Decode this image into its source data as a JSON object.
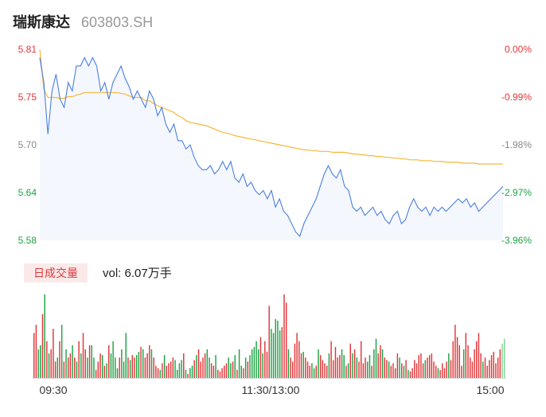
{
  "header": {
    "name": "瑞斯康达",
    "code": "603803.SH"
  },
  "volume_panel": {
    "tag": "日成交量",
    "label": "vol: 6.07万手"
  },
  "colors": {
    "price_line": "#4a7fe0",
    "avg_line": "#f5b73b",
    "area_fill": "#f4f7fd",
    "up": "#e0373a",
    "down": "#1ea345",
    "flat": "#888888",
    "axis_text": "#333333"
  },
  "chart_data": [
    {
      "type": "line",
      "title": "",
      "x_labels": [
        "09:30",
        "11:30/13:00",
        "15:00"
      ],
      "y_left_ticks": [
        "5.81",
        "5.75",
        "5.70",
        "5.64",
        "5.58"
      ],
      "y_right_ticks": [
        "0.00%",
        "-0.99%",
        "-1.98%",
        "-2.97%",
        "-3.96%"
      ],
      "ylim": [
        5.58,
        5.81
      ],
      "grid": false,
      "series": [
        {
          "role": "price",
          "values": [
            5.8,
            5.77,
            5.708,
            5.76,
            5.78,
            5.75,
            5.74,
            5.77,
            5.76,
            5.79,
            5.79,
            5.8,
            5.79,
            5.8,
            5.79,
            5.76,
            5.77,
            5.75,
            5.77,
            5.78,
            5.79,
            5.775,
            5.765,
            5.75,
            5.76,
            5.75,
            5.74,
            5.76,
            5.75,
            5.73,
            5.74,
            5.72,
            5.71,
            5.72,
            5.7,
            5.7,
            5.69,
            5.695,
            5.68,
            5.67,
            5.665,
            5.665,
            5.67,
            5.66,
            5.665,
            5.675,
            5.665,
            5.675,
            5.655,
            5.65,
            5.66,
            5.645,
            5.65,
            5.64,
            5.635,
            5.64,
            5.63,
            5.64,
            5.62,
            5.63,
            5.615,
            5.61,
            5.6,
            5.59,
            5.585,
            5.6,
            5.61,
            5.62,
            5.63,
            5.645,
            5.66,
            5.67,
            5.66,
            5.655,
            5.665,
            5.645,
            5.64,
            5.62,
            5.615,
            5.62,
            5.61,
            5.615,
            5.62,
            5.61,
            5.615,
            5.605,
            5.6,
            5.61,
            5.615,
            5.6,
            5.605,
            5.62,
            5.63,
            5.62,
            5.615,
            5.62,
            5.61,
            5.62,
            5.615,
            5.62,
            5.615,
            5.62,
            5.625,
            5.63,
            5.625,
            5.63,
            5.62,
            5.625,
            5.615,
            5.62,
            5.625,
            5.63,
            5.635,
            5.64,
            5.645
          ],
          "ylim": [
            5.58,
            5.81
          ]
        },
        {
          "role": "average",
          "values": [
            5.81,
            5.762,
            5.752,
            5.752,
            5.752,
            5.751,
            5.751,
            5.753,
            5.753,
            5.755,
            5.756,
            5.758,
            5.758,
            5.758,
            5.758,
            5.758,
            5.758,
            5.758,
            5.758,
            5.758,
            5.757,
            5.756,
            5.754,
            5.752,
            5.752,
            5.752,
            5.748,
            5.748,
            5.745,
            5.742,
            5.74,
            5.738,
            5.736,
            5.734,
            5.73,
            5.728,
            5.724,
            5.722,
            5.721,
            5.72,
            5.719,
            5.718,
            5.716,
            5.714,
            5.712,
            5.71,
            5.709,
            5.708,
            5.706,
            5.705,
            5.704,
            5.703,
            5.702,
            5.701,
            5.7,
            5.699,
            5.698,
            5.697,
            5.696,
            5.695,
            5.694,
            5.693,
            5.692,
            5.691,
            5.69,
            5.689,
            5.689,
            5.688,
            5.688,
            5.687,
            5.687,
            5.687,
            5.686,
            5.686,
            5.686,
            5.686,
            5.685,
            5.684,
            5.684,
            5.683,
            5.683,
            5.682,
            5.682,
            5.681,
            5.681,
            5.68,
            5.68,
            5.679,
            5.679,
            5.678,
            5.678,
            5.677,
            5.677,
            5.677,
            5.676,
            5.676,
            5.676,
            5.675,
            5.675,
            5.675,
            5.674,
            5.674,
            5.674,
            5.674,
            5.673,
            5.673,
            5.673,
            5.673,
            5.672,
            5.672,
            5.672,
            5.672,
            5.672,
            5.672,
            5.672
          ],
          "ylim": [
            5.58,
            5.81
          ]
        }
      ]
    },
    {
      "type": "bar",
      "title": "",
      "x_labels": [
        "09:30",
        "11:30/13:00",
        "15:00"
      ],
      "values": [
        55,
        65,
        35,
        40,
        78,
        102,
        45,
        30,
        35,
        60,
        20,
        25,
        45,
        65,
        20,
        35,
        25,
        30,
        40,
        25,
        20,
        45,
        30,
        55,
        35,
        25,
        40,
        40,
        25,
        10,
        20,
        30,
        28,
        15,
        18,
        40,
        30,
        45,
        25,
        12,
        25,
        35,
        20,
        55,
        25,
        22,
        28,
        25,
        28,
        32,
        38,
        35,
        25,
        30,
        40,
        35,
        25,
        15,
        12,
        10,
        18,
        28,
        15,
        18,
        20,
        25,
        22,
        10,
        18,
        22,
        30,
        10,
        5,
        12,
        15,
        22,
        28,
        35,
        20,
        25,
        30,
        35,
        25,
        18,
        15,
        28,
        10,
        8,
        12,
        15,
        18,
        25,
        18,
        20,
        28,
        10,
        35,
        15,
        12,
        25,
        20,
        28,
        35,
        38,
        45,
        35,
        50,
        30,
        45,
        32,
        88,
        60,
        55,
        72,
        70,
        58,
        62,
        102,
        92,
        35,
        25,
        20,
        42,
        55,
        45,
        30,
        32,
        25,
        20,
        15,
        18,
        12,
        15,
        35,
        28,
        22,
        18,
        15,
        30,
        45,
        22,
        38,
        25,
        28,
        35,
        28,
        15,
        18,
        42,
        30,
        35,
        25,
        20,
        45,
        18,
        25,
        20,
        28,
        15,
        35,
        48,
        30,
        40,
        35,
        25,
        22,
        20,
        15,
        18,
        12,
        30,
        25,
        18,
        15,
        22,
        10,
        8,
        12,
        22,
        18,
        28,
        30,
        18,
        22,
        25,
        28,
        30,
        20,
        15,
        12,
        10,
        18,
        12,
        20,
        30,
        22,
        45,
        65,
        50,
        40,
        15,
        35,
        55,
        40,
        25,
        20,
        35,
        45,
        55,
        30,
        20,
        25,
        15,
        22,
        28,
        32,
        18,
        25,
        35,
        42,
        48
      ],
      "directions": [
        "up",
        "up",
        "down",
        "down",
        "up",
        "down",
        "up",
        "down",
        "up",
        "up",
        "up",
        "down",
        "up",
        "down",
        "up",
        "down",
        "up",
        "up",
        "down",
        "up",
        "down",
        "up",
        "down",
        "up",
        "up",
        "down",
        "up",
        "down",
        "down",
        "up",
        "up",
        "up",
        "down",
        "up",
        "down",
        "up",
        "down",
        "down",
        "down",
        "down",
        "up",
        "down",
        "down",
        "down",
        "up",
        "down",
        "up",
        "up",
        "down",
        "down",
        "up",
        "down",
        "up",
        "up",
        "up",
        "down",
        "up",
        "up",
        "up",
        "down",
        "up",
        "down",
        "up",
        "up",
        "up",
        "up",
        "down",
        "down",
        "down",
        "down",
        "up",
        "down",
        "up",
        "down",
        "down",
        "up",
        "down",
        "up",
        "up",
        "up",
        "up",
        "down",
        "down",
        "up",
        "up",
        "down",
        "up",
        "up",
        "up",
        "up",
        "up",
        "down",
        "down",
        "up",
        "down",
        "up",
        "down",
        "down",
        "up",
        "down",
        "up",
        "down",
        "down",
        "down",
        "down",
        "down",
        "up",
        "down",
        "up",
        "up",
        "up",
        "down",
        "down",
        "down",
        "down",
        "down",
        "up",
        "up",
        "up",
        "down",
        "up",
        "up",
        "up",
        "up",
        "up",
        "up",
        "down",
        "up",
        "up",
        "up",
        "down",
        "down",
        "up",
        "down",
        "up",
        "up",
        "up",
        "up",
        "down",
        "up",
        "up",
        "up",
        "up",
        "up",
        "down",
        "down",
        "up",
        "down",
        "up",
        "down",
        "up",
        "down",
        "up",
        "up",
        "up",
        "up",
        "down",
        "down",
        "up",
        "down",
        "down",
        "up",
        "up",
        "down",
        "up",
        "up",
        "down",
        "up",
        "up",
        "up",
        "up",
        "down",
        "up",
        "down",
        "up",
        "down",
        "up",
        "up",
        "up",
        "up",
        "up",
        "up",
        "up",
        "down",
        "up",
        "up",
        "up",
        "up",
        "up",
        "down",
        "up",
        "up",
        "up",
        "up",
        "down",
        "up",
        "up",
        "up",
        "up",
        "up",
        "up",
        "down",
        "up",
        "up",
        "up",
        "up",
        "up",
        "up",
        "up",
        "up",
        "down",
        "up",
        "up",
        "up",
        "up",
        "up",
        "up",
        "up",
        "up",
        "flat"
      ]
    }
  ]
}
